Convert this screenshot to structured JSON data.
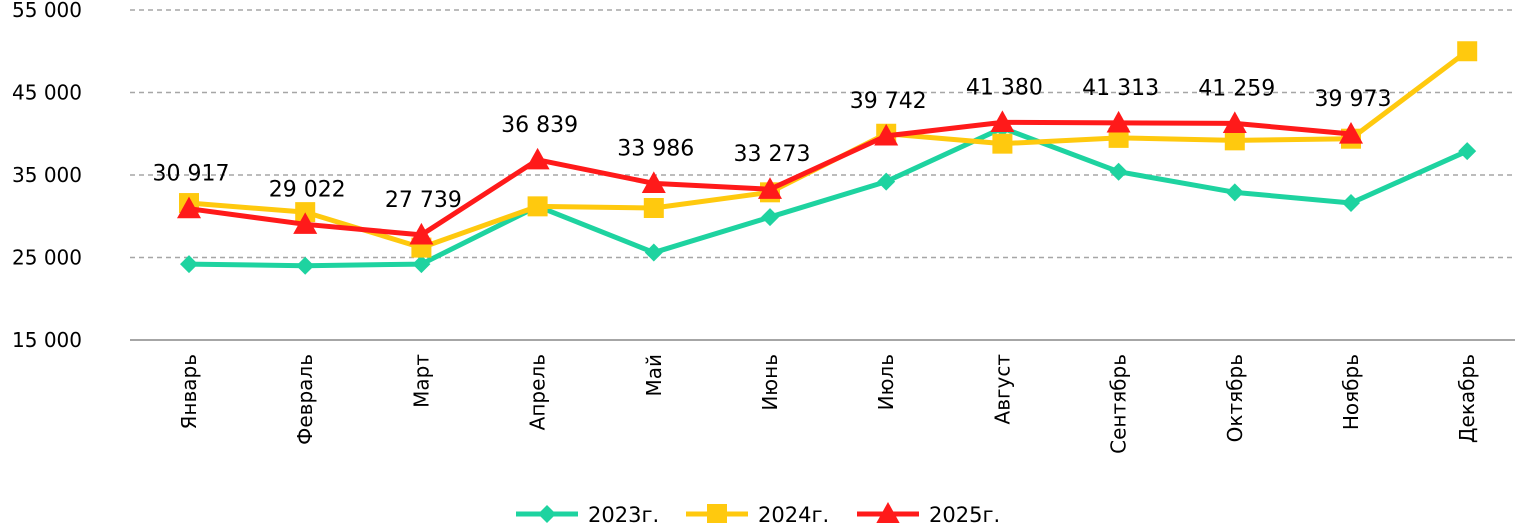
{
  "chart_data": {
    "type": "line",
    "categories": [
      "Январь",
      "Февраль",
      "Март",
      "Апрель",
      "Май",
      "Июнь",
      "Июль",
      "Август",
      "Сентябрь",
      "Октябрь",
      "Ноябрь",
      "Декабрь"
    ],
    "ylim": [
      15000,
      55000
    ],
    "yticks": [
      15000,
      25000,
      35000,
      45000,
      55000
    ],
    "ytick_labels": [
      "15 000",
      "25 000",
      "35 000",
      "45 000",
      "55 000"
    ],
    "grid": true,
    "legend_position": "bottom",
    "series": [
      {
        "name": "2023г.",
        "color": "#1ED3A0",
        "marker": "diamond",
        "values": [
          24200,
          24000,
          24200,
          31200,
          25600,
          29900,
          34200,
          40700,
          35400,
          32900,
          31600,
          37900
        ]
      },
      {
        "name": "2024г.",
        "color": "#FFC90E",
        "marker": "square",
        "values": [
          31600,
          30500,
          26200,
          31200,
          31000,
          32900,
          40000,
          38800,
          39500,
          39200,
          39400,
          50000
        ]
      },
      {
        "name": "2025г.",
        "color": "#FF1A1A",
        "marker": "triangle",
        "values": [
          30917,
          29022,
          27739,
          36839,
          33986,
          33273,
          39742,
          41380,
          41313,
          41259,
          39973,
          null
        ],
        "data_labels": [
          "30 917",
          "29 022",
          "27 739",
          "36 839",
          "33 986",
          "33 273",
          "39 742",
          "41 380",
          "41 313",
          "41 259",
          "39 973",
          ""
        ]
      }
    ]
  }
}
